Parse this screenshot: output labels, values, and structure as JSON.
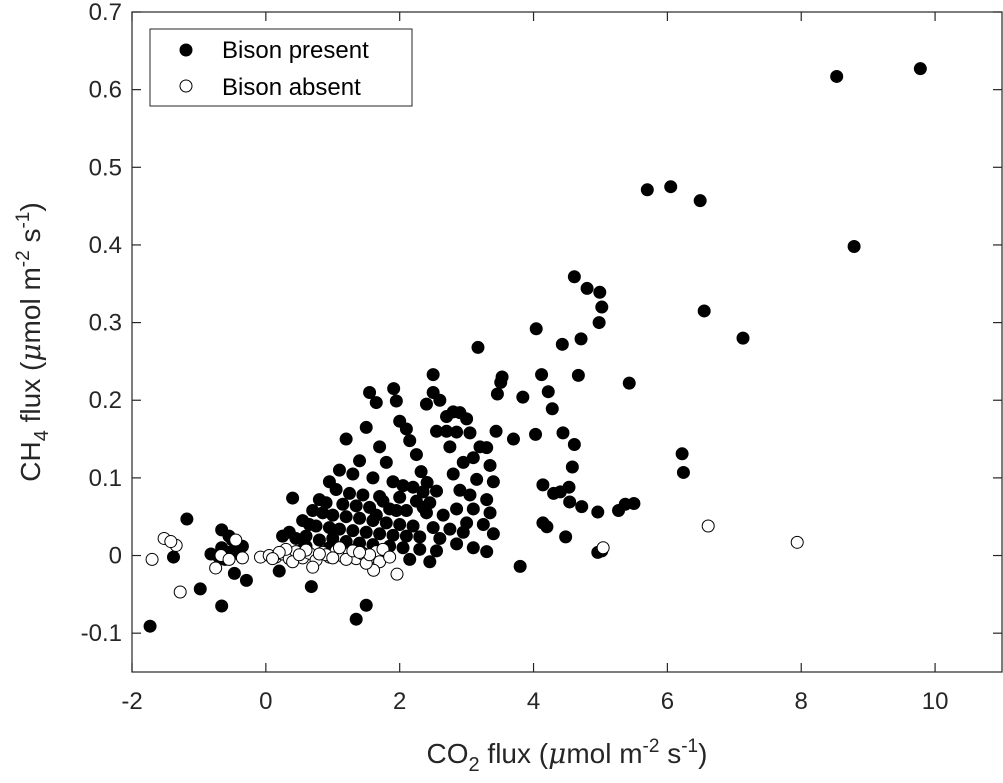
{
  "chart_data": {
    "type": "scatter",
    "xlabel": {
      "pre": "CO",
      "sub": "2",
      "post1": " flux (",
      "mu": "μ",
      "post2": "mol m",
      "sup1": "-2",
      "post3": " s",
      "sup2": "-1",
      "post4": ")"
    },
    "ylabel": {
      "pre": "CH",
      "sub": "4",
      "post1": " flux (",
      "mu": "μ",
      "post2": "mol m",
      "sup1": "-2",
      "post3": " s",
      "sup2": "-1",
      "post4": ")"
    },
    "xlim": [
      -2,
      11
    ],
    "ylim": [
      -0.15,
      0.7
    ],
    "xticks": [
      -2,
      0,
      2,
      4,
      6,
      8,
      10
    ],
    "xtick_labels": [
      "-2",
      "0",
      "2",
      "4",
      "6",
      "8",
      "10"
    ],
    "yticks": [
      -0.1,
      0,
      0.1,
      0.2,
      0.3,
      0.4,
      0.5,
      0.6,
      0.7
    ],
    "ytick_labels": [
      "-0.1",
      "0",
      "0.1",
      "0.2",
      "0.3",
      "0.4",
      "0.5",
      "0.6",
      "0.7"
    ],
    "grid": false,
    "legend": {
      "placement": "top-left"
    },
    "colors": {
      "present": "#000000",
      "absent": "#ffffff",
      "axis": "#262626"
    },
    "series": [
      {
        "name": "Bison present",
        "marker": "filled-circle",
        "points": [
          [
            9.78,
            0.627
          ],
          [
            8.53,
            0.617
          ],
          [
            8.79,
            0.398
          ],
          [
            6.49,
            0.457
          ],
          [
            6.05,
            0.475
          ],
          [
            5.7,
            0.471
          ],
          [
            6.55,
            0.315
          ],
          [
            7.13,
            0.28
          ],
          [
            6.22,
            0.131
          ],
          [
            6.24,
            0.107
          ],
          [
            5.43,
            0.222
          ],
          [
            5.37,
            0.066
          ],
          [
            5.5,
            0.067
          ],
          [
            5.27,
            0.058
          ],
          [
            4.61,
            0.359
          ],
          [
            4.8,
            0.344
          ],
          [
            4.99,
            0.339
          ],
          [
            5.02,
            0.32
          ],
          [
            4.98,
            0.3
          ],
          [
            4.71,
            0.279
          ],
          [
            4.43,
            0.272
          ],
          [
            4.67,
            0.232
          ],
          [
            4.04,
            0.292
          ],
          [
            4.12,
            0.233
          ],
          [
            3.84,
            0.204
          ],
          [
            4.22,
            0.211
          ],
          [
            4.28,
            0.189
          ],
          [
            4.03,
            0.156
          ],
          [
            4.44,
            0.158
          ],
          [
            4.61,
            0.143
          ],
          [
            4.58,
            0.114
          ],
          [
            4.53,
            0.088
          ],
          [
            4.14,
            0.091
          ],
          [
            4.3,
            0.08
          ],
          [
            4.4,
            0.082
          ],
          [
            4.54,
            0.069
          ],
          [
            4.72,
            0.063
          ],
          [
            4.96,
            0.056
          ],
          [
            4.14,
            0.042
          ],
          [
            4.2,
            0.037
          ],
          [
            4.48,
            0.024
          ],
          [
            4.96,
            0.004
          ],
          [
            5.02,
            0.006
          ],
          [
            3.8,
            -0.014
          ],
          [
            3.17,
            0.268
          ],
          [
            3.53,
            0.23
          ],
          [
            3.51,
            0.223
          ],
          [
            3.46,
            0.208
          ],
          [
            3.44,
            0.16
          ],
          [
            3.7,
            0.15
          ],
          [
            2.5,
            0.233
          ],
          [
            2.5,
            0.21
          ],
          [
            2.4,
            0.195
          ],
          [
            1.91,
            0.215
          ],
          [
            1.95,
            0.199
          ],
          [
            2.0,
            0.173
          ],
          [
            2.1,
            0.163
          ],
          [
            2.15,
            0.148
          ],
          [
            2.25,
            0.13
          ],
          [
            2.32,
            0.108
          ],
          [
            2.41,
            0.094
          ],
          [
            2.55,
            0.083
          ],
          [
            2.6,
            0.2
          ],
          [
            2.7,
            0.179
          ],
          [
            2.8,
            0.185
          ],
          [
            2.9,
            0.184
          ],
          [
            3.0,
            0.176
          ],
          [
            2.55,
            0.16
          ],
          [
            2.7,
            0.16
          ],
          [
            2.85,
            0.159
          ],
          [
            3.05,
            0.158
          ],
          [
            2.75,
            0.14
          ],
          [
            3.2,
            0.14
          ],
          [
            3.3,
            0.139
          ],
          [
            3.1,
            0.126
          ],
          [
            2.95,
            0.12
          ],
          [
            3.35,
            0.116
          ],
          [
            2.8,
            0.105
          ],
          [
            3.15,
            0.098
          ],
          [
            3.4,
            0.095
          ],
          [
            2.9,
            0.084
          ],
          [
            3.05,
            0.078
          ],
          [
            3.3,
            0.072
          ],
          [
            2.85,
            0.06
          ],
          [
            3.1,
            0.06
          ],
          [
            3.35,
            0.055
          ],
          [
            3.0,
            0.042
          ],
          [
            3.25,
            0.04
          ],
          [
            2.95,
            0.03
          ],
          [
            3.4,
            0.028
          ],
          [
            2.85,
            0.015
          ],
          [
            3.1,
            0.01
          ],
          [
            3.3,
            0.005
          ],
          [
            1.55,
            0.21
          ],
          [
            1.65,
            0.197
          ],
          [
            1.5,
            0.165
          ],
          [
            1.2,
            0.15
          ],
          [
            1.7,
            0.14
          ],
          [
            1.8,
            0.12
          ],
          [
            1.4,
            0.122
          ],
          [
            1.1,
            0.11
          ],
          [
            1.3,
            0.105
          ],
          [
            1.6,
            0.1
          ],
          [
            1.9,
            0.095
          ],
          [
            2.05,
            0.09
          ],
          [
            2.2,
            0.088
          ],
          [
            2.35,
            0.082
          ],
          [
            0.95,
            0.095
          ],
          [
            1.05,
            0.085
          ],
          [
            1.25,
            0.08
          ],
          [
            1.45,
            0.078
          ],
          [
            1.7,
            0.076
          ],
          [
            2.0,
            0.075
          ],
          [
            2.25,
            0.07
          ],
          [
            2.45,
            0.068
          ],
          [
            0.8,
            0.072
          ],
          [
            0.9,
            0.068
          ],
          [
            1.15,
            0.066
          ],
          [
            1.35,
            0.064
          ],
          [
            1.55,
            0.062
          ],
          [
            1.85,
            0.06
          ],
          [
            2.1,
            0.058
          ],
          [
            2.4,
            0.055
          ],
          [
            2.65,
            0.052
          ],
          [
            0.4,
            0.074
          ],
          [
            0.7,
            0.058
          ],
          [
            0.85,
            0.055
          ],
          [
            1.0,
            0.052
          ],
          [
            1.2,
            0.05
          ],
          [
            1.4,
            0.048
          ],
          [
            1.6,
            0.045
          ],
          [
            1.8,
            0.042
          ],
          [
            2.0,
            0.04
          ],
          [
            2.2,
            0.038
          ],
          [
            2.5,
            0.036
          ],
          [
            2.75,
            0.034
          ],
          [
            0.55,
            0.045
          ],
          [
            0.65,
            0.04
          ],
          [
            0.75,
            0.038
          ],
          [
            0.95,
            0.036
          ],
          [
            1.1,
            0.034
          ],
          [
            1.3,
            0.032
          ],
          [
            1.5,
            0.03
          ],
          [
            1.7,
            0.028
          ],
          [
            1.9,
            0.026
          ],
          [
            2.1,
            0.025
          ],
          [
            2.3,
            0.024
          ],
          [
            2.6,
            0.022
          ],
          [
            0.25,
            0.025
          ],
          [
            0.35,
            0.03
          ],
          [
            0.45,
            0.022
          ],
          [
            0.6,
            0.025
          ],
          [
            0.8,
            0.02
          ],
          [
            1.0,
            0.022
          ],
          [
            1.2,
            0.018
          ],
          [
            1.4,
            0.016
          ],
          [
            1.6,
            0.014
          ],
          [
            1.85,
            0.012
          ],
          [
            2.05,
            0.01
          ],
          [
            2.3,
            0.008
          ],
          [
            2.55,
            0.006
          ],
          [
            0.3,
            0.005
          ],
          [
            0.55,
            0.008
          ],
          [
            0.85,
            0.004
          ],
          [
            1.15,
            0.002
          ],
          [
            1.45,
            0.003
          ],
          [
            1.75,
            0.001
          ],
          [
            2.15,
            -0.005
          ],
          [
            2.45,
            -0.008
          ],
          [
            0.2,
            -0.02
          ],
          [
            0.68,
            -0.04
          ],
          [
            1.5,
            -0.064
          ],
          [
            1.35,
            -0.082
          ],
          [
            1.65,
            0.052
          ],
          [
            1.75,
            0.07
          ],
          [
            1.95,
            0.058
          ],
          [
            2.35,
            0.062
          ],
          [
            0.6,
            0.012
          ],
          [
            0.95,
            0.01
          ],
          [
            1.25,
            0.008
          ],
          [
            -1.73,
            -0.091
          ],
          [
            -1.18,
            0.047
          ],
          [
            -0.66,
            0.033
          ],
          [
            -0.82,
            0.002
          ],
          [
            -0.66,
            0.01
          ],
          [
            -0.5,
            0.02
          ],
          [
            -0.45,
            0.008
          ],
          [
            -0.35,
            0.012
          ],
          [
            -0.55,
            0.004
          ],
          [
            -0.7,
            -0.002
          ],
          [
            -0.72,
            0.0
          ],
          [
            -0.61,
            -0.005
          ],
          [
            -0.47,
            -0.023
          ],
          [
            -0.29,
            -0.032
          ],
          [
            -0.66,
            -0.065
          ],
          [
            -0.98,
            -0.043
          ],
          [
            -1.38,
            -0.002
          ],
          [
            -0.55,
            0.025
          ],
          [
            -0.4,
            0.002
          ]
        ]
      },
      {
        "name": "Bison absent",
        "marker": "open-circle",
        "points": [
          [
            6.61,
            0.038
          ],
          [
            7.94,
            0.017
          ],
          [
            5.04,
            0.01
          ],
          [
            -1.7,
            -0.005
          ],
          [
            -1.52,
            0.022
          ],
          [
            -1.34,
            0.013
          ],
          [
            -1.42,
            0.018
          ],
          [
            -1.28,
            -0.047
          ],
          [
            -0.75,
            -0.016
          ],
          [
            -0.67,
            0.0
          ],
          [
            -0.45,
            0.02
          ],
          [
            -0.35,
            -0.003
          ],
          [
            -0.55,
            -0.005
          ],
          [
            -0.08,
            -0.002
          ],
          [
            0.05,
            0.0
          ],
          [
            0.15,
            -0.002
          ],
          [
            0.25,
            0.002
          ],
          [
            0.35,
            -0.004
          ],
          [
            0.45,
            0.005
          ],
          [
            0.55,
            -0.003
          ],
          [
            0.65,
            0.003
          ],
          [
            0.75,
            -0.006
          ],
          [
            0.85,
            0.004
          ],
          [
            0.95,
            -0.002
          ],
          [
            1.05,
            0.006
          ],
          [
            1.15,
            -0.001
          ],
          [
            1.25,
            0.003
          ],
          [
            1.35,
            -0.004
          ],
          [
            1.45,
            0.002
          ],
          [
            1.55,
            -0.003
          ],
          [
            1.65,
            0.005
          ],
          [
            1.7,
            -0.008
          ],
          [
            1.61,
            -0.019
          ],
          [
            1.75,
            0.008
          ],
          [
            1.85,
            -0.002
          ],
          [
            1.96,
            -0.024
          ],
          [
            0.7,
            -0.015
          ],
          [
            1.1,
            0.01
          ],
          [
            0.3,
            0.008
          ],
          [
            0.6,
            0.007
          ],
          [
            0.9,
            0.001
          ],
          [
            1.2,
            -0.005
          ],
          [
            1.5,
            -0.01
          ],
          [
            0.4,
            -0.008
          ],
          [
            0.2,
            0.004
          ],
          [
            0.8,
            0.002
          ],
          [
            1.3,
            0.006
          ],
          [
            1.55,
            0.001
          ],
          [
            0.1,
            -0.004
          ],
          [
            0.5,
            0.001
          ],
          [
            1.0,
            -0.003
          ],
          [
            1.4,
            0.004
          ]
        ]
      }
    ],
    "legend_entries": [
      "Bison present",
      "Bison absent"
    ]
  }
}
